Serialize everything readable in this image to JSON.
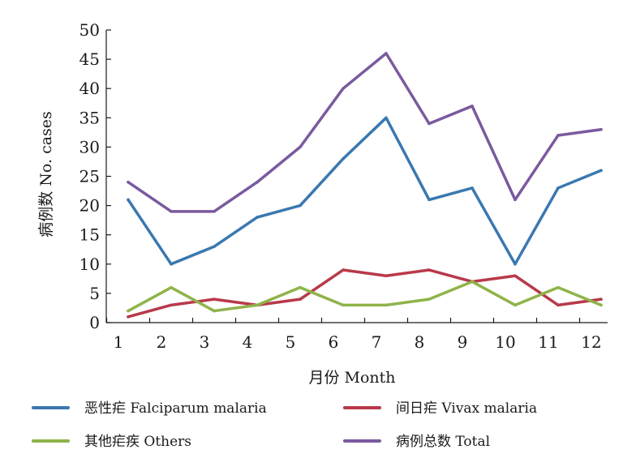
{
  "chart_data": {
    "type": "line",
    "title": "",
    "xlabel": "月份 Month",
    "ylabel": "病例数 No. cases",
    "categories": [
      "1",
      "2",
      "3",
      "4",
      "5",
      "6",
      "7",
      "8",
      "9",
      "10",
      "11",
      "12"
    ],
    "yticks": [
      "0",
      "5",
      "10",
      "15",
      "20",
      "25",
      "30",
      "35",
      "40",
      "45",
      "50"
    ],
    "ylim": [
      0,
      50
    ],
    "grid": false,
    "legend_position": "bottom",
    "series": [
      {
        "name": "恶性疟 Falciparum malaria",
        "color": "#3a78b0",
        "values": [
          21,
          10,
          13,
          18,
          20,
          28,
          35,
          21,
          23,
          10,
          23,
          26
        ]
      },
      {
        "name": "间日疟 Vivax malaria",
        "color": "#b8394a",
        "values": [
          1,
          3,
          4,
          3,
          4,
          9,
          8,
          9,
          7,
          8,
          3,
          4
        ]
      },
      {
        "name": "其他疟疾 Others",
        "color": "#8fb34a",
        "values": [
          2,
          6,
          2,
          3,
          6,
          3,
          3,
          4,
          7,
          3,
          6,
          3
        ]
      },
      {
        "name": "病例总数 Total",
        "color": "#7a5a9e",
        "values": [
          24,
          19,
          19,
          24,
          30,
          40,
          46,
          34,
          37,
          21,
          32,
          33
        ]
      }
    ]
  }
}
